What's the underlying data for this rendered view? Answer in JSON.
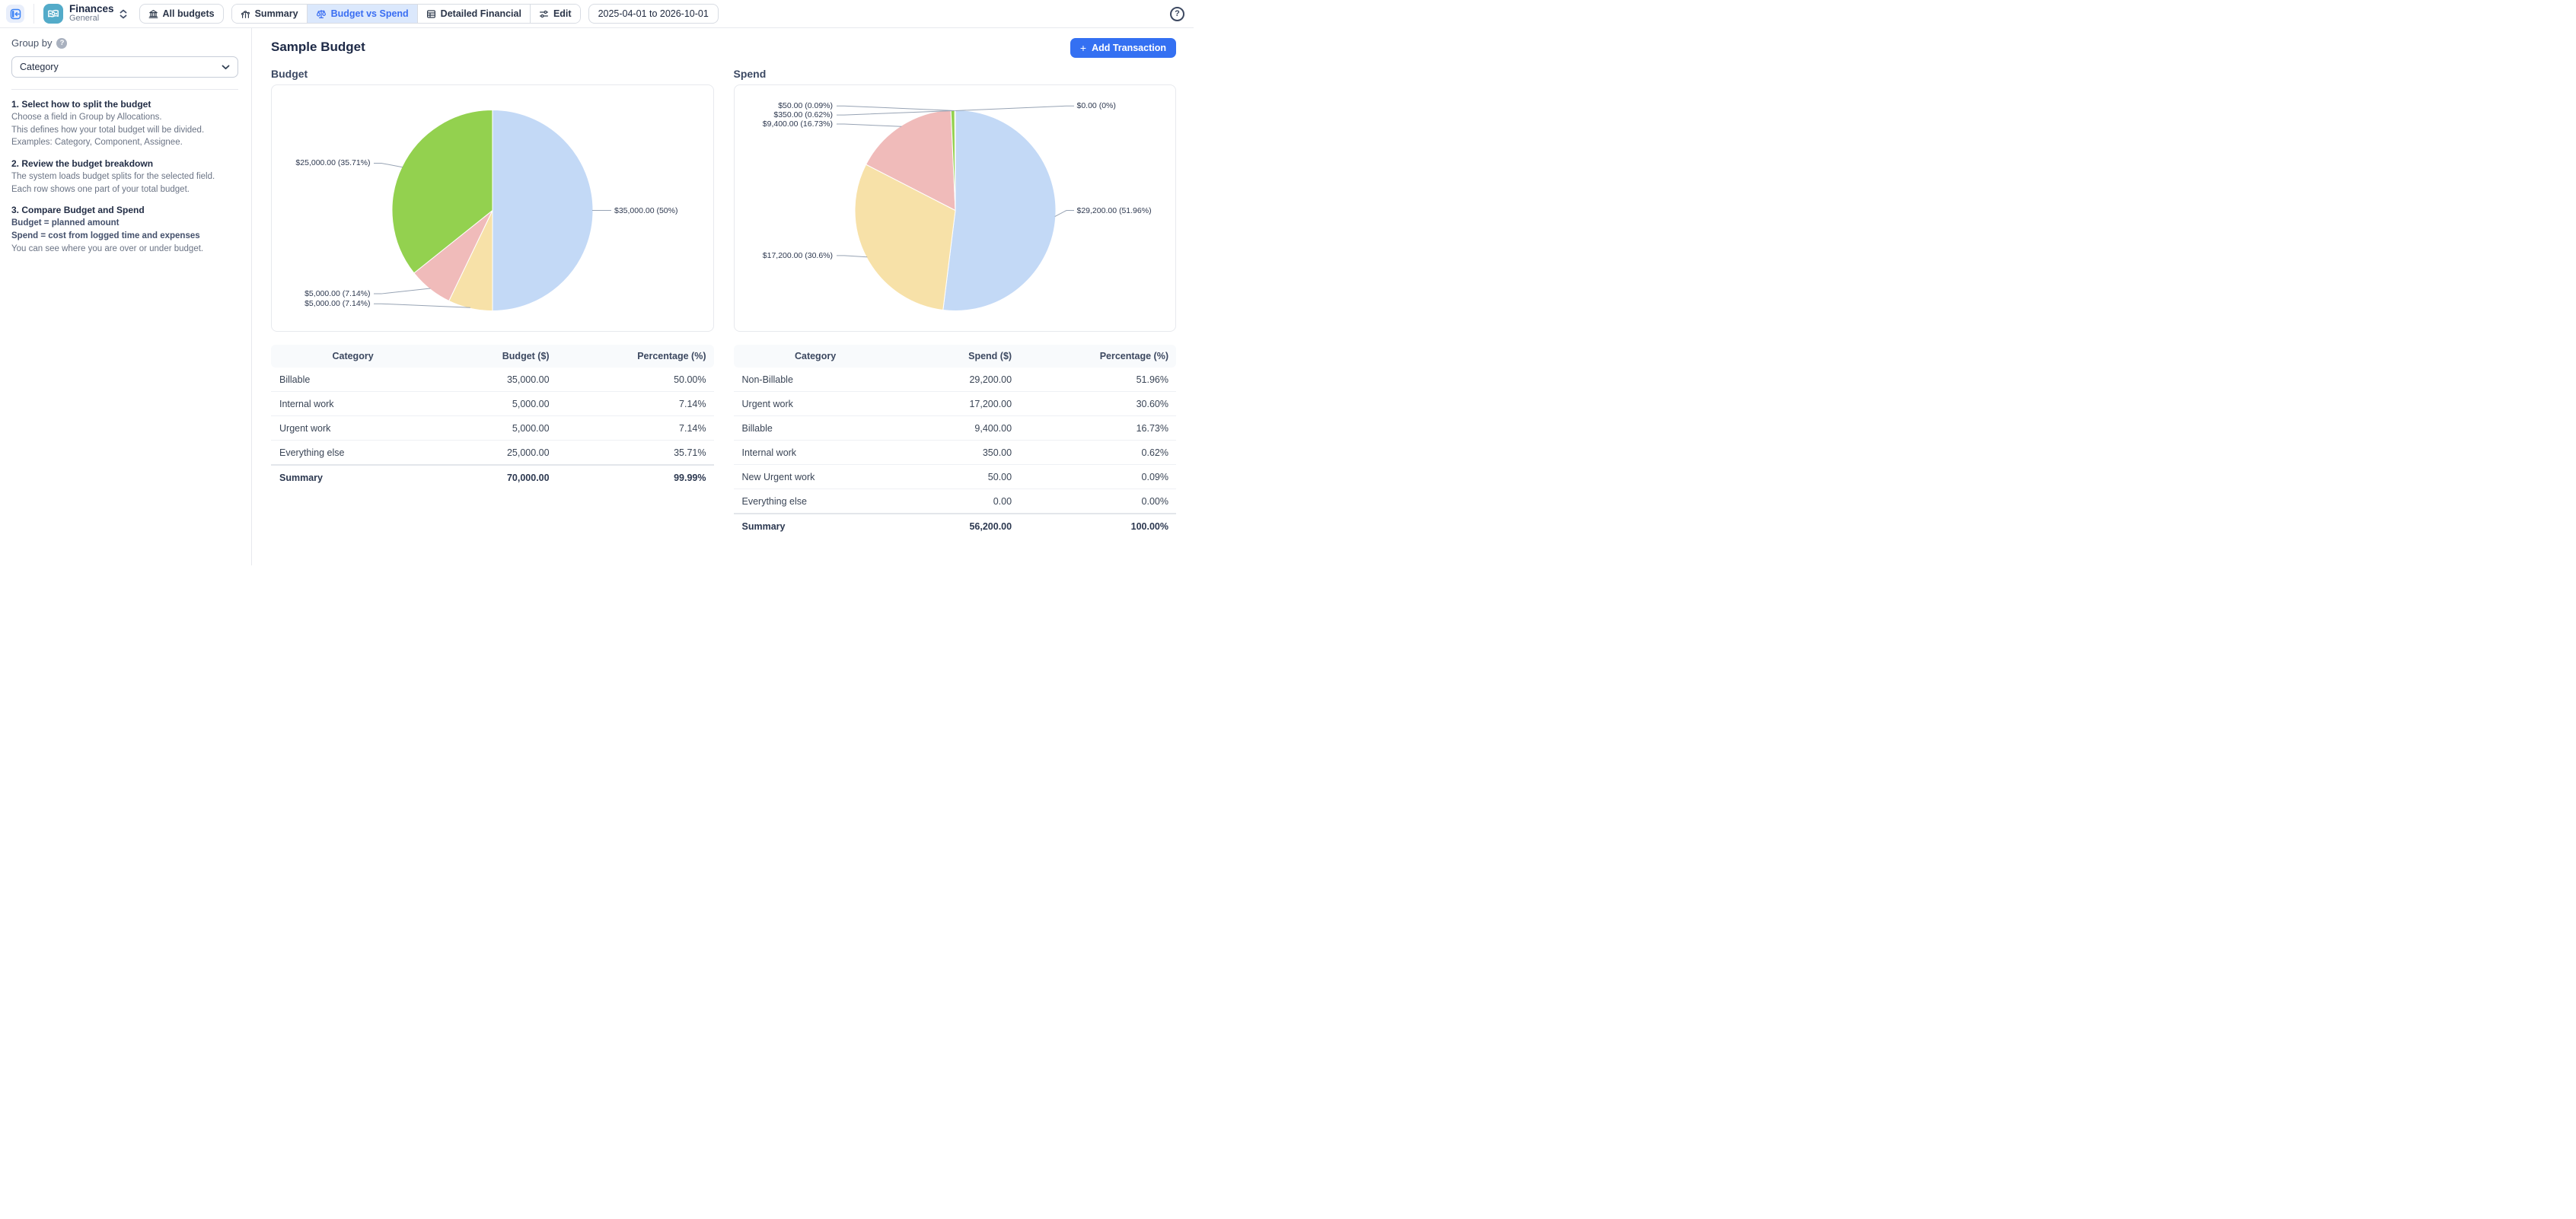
{
  "topbar": {
    "app": {
      "title": "Finances",
      "subtitle": "General"
    },
    "tabs": [
      {
        "label": "All budgets",
        "icon": "bank-icon",
        "selected": false
      },
      {
        "label": "Summary",
        "icon": "trend-chart-icon",
        "selected": false
      },
      {
        "label": "Budget vs Spend",
        "icon": "scales-icon",
        "selected": true
      },
      {
        "label": "Detailed Financial",
        "icon": "table-icon",
        "selected": false
      },
      {
        "label": "Edit",
        "icon": "sliders-icon",
        "selected": false
      }
    ],
    "date_range": "2025-04-01 to 2026-10-01",
    "help_glyph": "?"
  },
  "sidebar": {
    "group_by_label": "Group by",
    "help_glyph": "?",
    "group_by_value": "Category",
    "steps": [
      {
        "title": "1. Select how to split the budget",
        "lines": [
          "Choose a field in Group by Allocations.",
          "This defines how your total budget will be divided.",
          "Examples: Category, Component, Assignee."
        ]
      },
      {
        "title": "2. Review the budget breakdown",
        "lines": [
          "The system loads budget splits for the selected field.",
          "Each row shows one part of your total budget."
        ]
      },
      {
        "title": "3. Compare Budget and Spend",
        "bold_lines": [
          "Budget = planned amount",
          "Spend = cost from logged time and expenses"
        ],
        "lines": [
          "You can see where you are over or under budget."
        ]
      }
    ]
  },
  "main": {
    "title": "Sample Budget",
    "add_transaction_label": "Add Transaction",
    "plus_glyph": "+",
    "section_titles": {
      "budget": "Budget",
      "spend": "Spend"
    }
  },
  "chart_data": [
    {
      "type": "pie",
      "title": "Budget",
      "start_angle": "top",
      "direction": "clockwise",
      "legend": "none",
      "slices": [
        {
          "label": "Billable",
          "value": 35000,
          "pct": 50.0,
          "display": "$35,000.00 (50%)",
          "color": "#c3d9f6",
          "side": "right",
          "ly": 0.0
        },
        {
          "label": "Internal work",
          "value": 5000,
          "pct": 7.14,
          "display": "$5,000.00 (7.14%)",
          "color": "#f7e1a8",
          "side": "left",
          "ly": 0.93
        },
        {
          "label": "Urgent work",
          "value": 5000,
          "pct": 7.14,
          "display": "$5,000.00 (7.14%)",
          "color": "#f0bbba",
          "side": "left",
          "ly": 0.83
        },
        {
          "label": "Everything else",
          "value": 25000,
          "pct": 35.71,
          "display": "$25,000.00 (35.71%)",
          "color": "#93d14f",
          "side": "left",
          "ly": -0.47
        }
      ]
    },
    {
      "type": "pie",
      "title": "Spend",
      "start_angle": "top",
      "direction": "clockwise",
      "legend": "none",
      "slices": [
        {
          "label": "Non-Billable",
          "value": 29200,
          "pct": 51.96,
          "display": "$29,200.00 (51.96%)",
          "color": "#c3d9f6",
          "side": "right",
          "ly": 0.0
        },
        {
          "label": "Urgent work",
          "value": 17200,
          "pct": 30.6,
          "display": "$17,200.00 (30.6%)",
          "color": "#f7e1a8",
          "side": "left",
          "ly": 0.45
        },
        {
          "label": "Billable",
          "value": 9400,
          "pct": 16.73,
          "display": "$9,400.00 (16.73%)",
          "color": "#f0bbba",
          "side": "left",
          "ly": -0.86
        },
        {
          "label": "Internal work",
          "value": 350,
          "pct": 0.62,
          "display": "$350.00 (0.62%)",
          "color": "#93d14f",
          "side": "left",
          "ly": -0.95
        },
        {
          "label": "New Urgent work",
          "value": 50,
          "pct": 0.09,
          "display": "$50.00 (0.09%)",
          "color": "#c7b9ec",
          "side": "left",
          "ly": -1.04
        },
        {
          "label": "Everything else",
          "value": 0,
          "pct": 0.0,
          "display": "$0.00 (0%)",
          "color": "#cccccc",
          "side": "right",
          "ly": -1.04
        }
      ]
    }
  ],
  "tables": [
    {
      "headers": [
        "Category",
        "Budget ($)",
        "Percentage (%)"
      ],
      "rows": [
        [
          "Billable",
          "35,000.00",
          "50.00%"
        ],
        [
          "Internal work",
          "5,000.00",
          "7.14%"
        ],
        [
          "Urgent work",
          "5,000.00",
          "7.14%"
        ],
        [
          "Everything else",
          "25,000.00",
          "35.71%"
        ]
      ],
      "summary": [
        "Summary",
        "70,000.00",
        "99.99%"
      ]
    },
    {
      "headers": [
        "Category",
        "Spend ($)",
        "Percentage (%)"
      ],
      "rows": [
        [
          "Non-Billable",
          "29,200.00",
          "51.96%"
        ],
        [
          "Urgent work",
          "17,200.00",
          "30.60%"
        ],
        [
          "Billable",
          "9,400.00",
          "16.73%"
        ],
        [
          "Internal work",
          "350.00",
          "0.62%"
        ],
        [
          "New Urgent work",
          "50.00",
          "0.09%"
        ],
        [
          "Everything else",
          "0.00",
          "0.00%"
        ]
      ],
      "summary": [
        "Summary",
        "56,200.00",
        "100.00%"
      ]
    }
  ]
}
